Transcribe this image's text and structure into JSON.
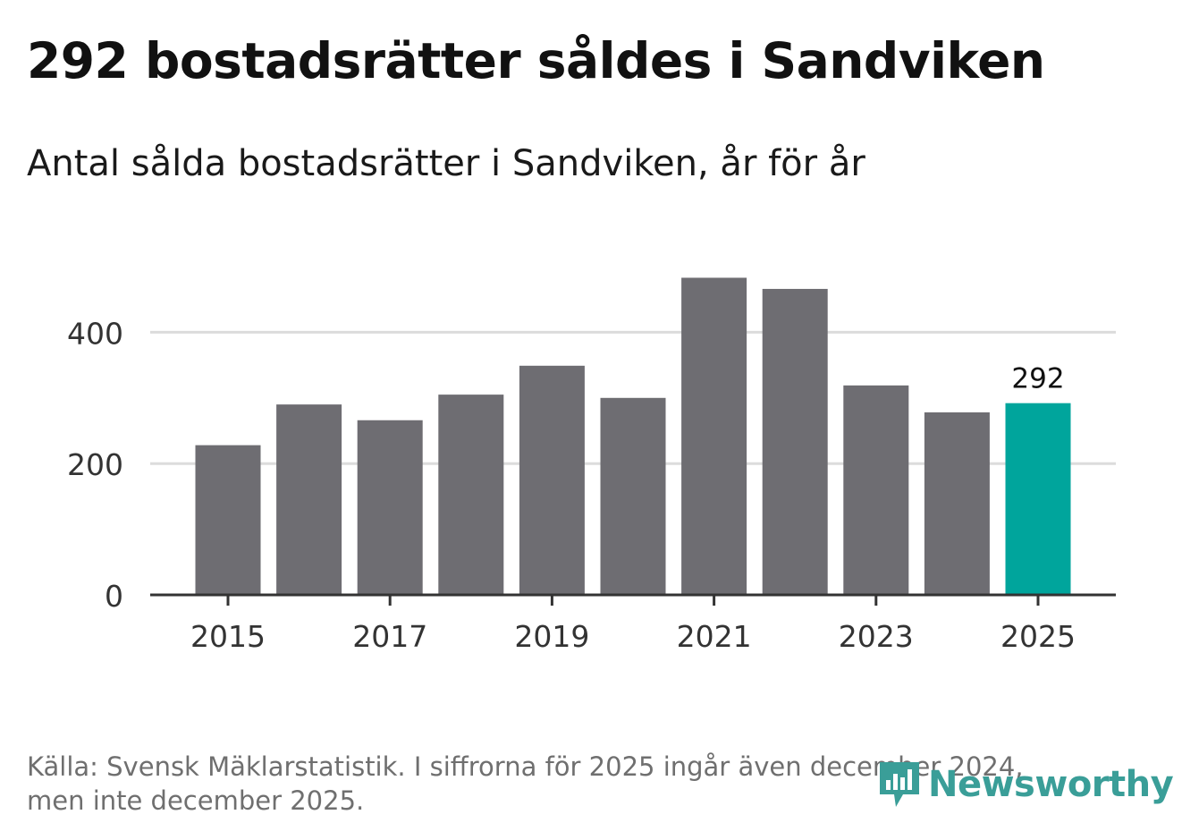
{
  "title": "292 bostadsrätter såldes i Sandviken",
  "subtitle": "Antal sålda bostadsrätter i Sandviken, år för år",
  "footer": {
    "line1": "Källa: Svensk Mäklarstatistik. I siffrorna för 2025 ingår även december 2024,",
    "line2": "men inte december 2025."
  },
  "logo": {
    "text": "Newsworthy",
    "icon": "bar-chart-speech-bubble-icon",
    "color": "#3a9e98"
  },
  "colors": {
    "bar": "#6e6d72",
    "highlight": "#00a59c",
    "axis": "#333333",
    "grid": "#dcdcdc"
  },
  "chart_data": {
    "type": "bar",
    "title": "Antal sålda bostadsrätter i Sandviken, år för år",
    "xlabel": "",
    "ylabel": "",
    "categories": [
      "2015",
      "2016",
      "2017",
      "2018",
      "2019",
      "2020",
      "2021",
      "2022",
      "2023",
      "2024",
      "2025"
    ],
    "values": [
      228,
      290,
      266,
      305,
      349,
      300,
      483,
      466,
      319,
      278,
      292
    ],
    "highlight_index": 10,
    "highlight_label": "292",
    "ylim": [
      0,
      500
    ],
    "yticks": [
      0,
      200,
      400
    ],
    "ytick_labels": [
      "0",
      "200",
      "400"
    ],
    "xtick_labels": [
      "2015",
      "2017",
      "2019",
      "2021",
      "2023",
      "2025"
    ],
    "grid": true,
    "legend": "none"
  }
}
